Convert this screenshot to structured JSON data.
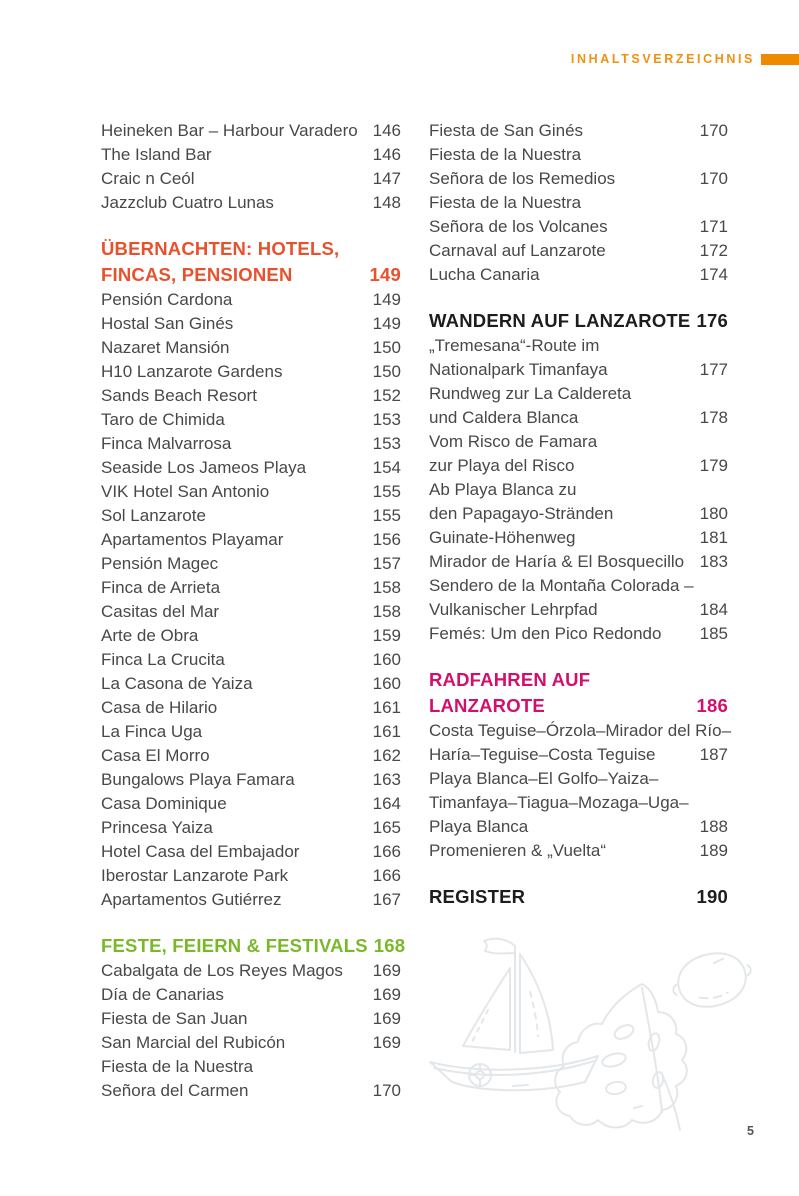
{
  "header": {
    "label": "INHALTSVERZEICHNIS",
    "accent_color": "#ee8a00",
    "label_color": "#f0920f"
  },
  "footer": {
    "page_number": "5"
  },
  "colors": {
    "body_text": "#484848",
    "heading_orange": "#e8512c",
    "heading_green": "#79b929",
    "heading_magenta": "#d30f6d",
    "heading_black": "#1d1d1b",
    "illustration_stroke": "#e4e7ea"
  },
  "illustrations": [
    "sailboat",
    "monstera-leaf",
    "lemon"
  ],
  "toc": {
    "columns": [
      {
        "sections": [
          {
            "heading": null,
            "entries": [
              {
                "text": "Heineken Bar – Harbour Varadero",
                "page": "146"
              },
              {
                "text": "The Island Bar",
                "page": "146"
              },
              {
                "text": "Craic n Ceól",
                "page": "147"
              },
              {
                "text": "Jazzclub Cuatro Lunas",
                "page": "148"
              }
            ]
          },
          {
            "heading": {
              "color": "#e8512c",
              "lines": [
                {
                  "text": "ÜBERNACHTEN: HOTELS,",
                  "page": ""
                },
                {
                  "text": "FINCAS, PENSIONEN",
                  "page": "149"
                }
              ]
            },
            "entries": [
              {
                "text": "Pensión Cardona",
                "page": "149"
              },
              {
                "text": "Hostal San Ginés",
                "page": "149"
              },
              {
                "text": "Nazaret Mansión",
                "page": "150"
              },
              {
                "text": "H10 Lanzarote Gardens",
                "page": "150"
              },
              {
                "text": "Sands Beach Resort",
                "page": "152"
              },
              {
                "text": "Taro de Chimida",
                "page": "153"
              },
              {
                "text": "Finca Malvarrosa",
                "page": "153"
              },
              {
                "text": "Seaside Los Jameos Playa",
                "page": "154"
              },
              {
                "text": "VIK Hotel San Antonio",
                "page": "155"
              },
              {
                "text": "Sol Lanzarote",
                "page": "155"
              },
              {
                "text": "Apartamentos Playamar",
                "page": "156"
              },
              {
                "text": "Pensión Magec",
                "page": "157"
              },
              {
                "text": "Finca de Arrieta",
                "page": "158"
              },
              {
                "text": "Casitas del Mar",
                "page": "158"
              },
              {
                "text": "Arte de Obra",
                "page": "159"
              },
              {
                "text": "Finca La Crucita",
                "page": "160"
              },
              {
                "text": "La Casona de Yaiza",
                "page": "160"
              },
              {
                "text": "Casa de Hilario",
                "page": "161"
              },
              {
                "text": "La Finca Uga",
                "page": "161"
              },
              {
                "text": "Casa El Morro",
                "page": "162"
              },
              {
                "text": "Bungalows Playa Famara",
                "page": "163"
              },
              {
                "text": "Casa Dominique",
                "page": "164"
              },
              {
                "text": "Princesa Yaiza",
                "page": "165"
              },
              {
                "text": "Hotel Casa del Embajador",
                "page": "166"
              },
              {
                "text": "Iberostar Lanzarote Park",
                "page": "166"
              },
              {
                "text": "Apartamentos Gutiérrez",
                "page": "167"
              }
            ]
          },
          {
            "heading": {
              "color": "#79b929",
              "lines": [
                {
                  "text": "FESTE, FEIERN & FESTIVALS",
                  "page": "168"
                }
              ]
            },
            "entries": [
              {
                "text": "Cabalgata de Los Reyes Magos",
                "page": "169"
              },
              {
                "text": "Día de Canarias",
                "page": "169"
              },
              {
                "text": "Fiesta de San Juan",
                "page": "169"
              },
              {
                "text": "San Marcial del Rubicón",
                "page": "169"
              },
              {
                "text": "Fiesta de la Nuestra",
                "page": ""
              },
              {
                "text": "Señora del Carmen",
                "page": "170"
              }
            ]
          }
        ]
      },
      {
        "sections": [
          {
            "heading": null,
            "entries": [
              {
                "text": "Fiesta de San Ginés",
                "page": "170"
              },
              {
                "text": "Fiesta de la Nuestra",
                "page": ""
              },
              {
                "text": "Señora de los Remedios",
                "page": "170"
              },
              {
                "text": "Fiesta de la Nuestra",
                "page": ""
              },
              {
                "text": "Señora de los Volcanes",
                "page": "171"
              },
              {
                "text": "Carnaval auf Lanzarote",
                "page": "172"
              },
              {
                "text": "Lucha Canaria",
                "page": "174"
              }
            ]
          },
          {
            "heading": {
              "color": "#1d1d1b",
              "lines": [
                {
                  "text": "WANDERN AUF LANZAROTE",
                  "page": "176"
                }
              ]
            },
            "entries": [
              {
                "text": "„Tremesana“-Route im",
                "page": ""
              },
              {
                "text": "Nationalpark Timanfaya",
                "page": "177"
              },
              {
                "text": "Rundweg zur La Caldereta",
                "page": ""
              },
              {
                "text": "und Caldera Blanca",
                "page": "178"
              },
              {
                "text": "Vom Risco de Famara",
                "page": ""
              },
              {
                "text": "zur Playa del Risco",
                "page": "179"
              },
              {
                "text": "Ab Playa Blanca zu",
                "page": ""
              },
              {
                "text": "den Papagayo-Stränden",
                "page": "180"
              },
              {
                "text": "Guinate-Höhenweg",
                "page": "181"
              },
              {
                "text": "Mirador de Haría & El Bosquecillo",
                "page": "183"
              },
              {
                "text": "Sendero de la Montaña Colorada –",
                "page": ""
              },
              {
                "text": "Vulkanischer Lehrpfad",
                "page": "184"
              },
              {
                "text": "Femés: Um den Pico Redondo",
                "page": "185"
              }
            ]
          },
          {
            "heading": {
              "color": "#d30f6d",
              "lines": [
                {
                  "text": "RADFAHREN AUF",
                  "page": ""
                },
                {
                  "text": "LANZAROTE",
                  "page": "186"
                }
              ]
            },
            "entries": [
              {
                "text": "Costa Teguise–Órzola–Mirador del Río–",
                "page": ""
              },
              {
                "text": "Haría–Teguise–Costa Teguise",
                "page": "187"
              },
              {
                "text": "Playa Blanca–El Golfo–Yaiza–",
                "page": ""
              },
              {
                "text": "Timanfaya–Tiagua–Mozaga–Uga–",
                "page": ""
              },
              {
                "text": "Playa Blanca",
                "page": "188"
              },
              {
                "text": "Promenieren & „Vuelta“",
                "page": "189"
              }
            ]
          },
          {
            "heading": {
              "color": "#1d1d1b",
              "lines": [
                {
                  "text": "REGISTER",
                  "page": "190"
                }
              ]
            },
            "entries": []
          }
        ]
      }
    ]
  }
}
